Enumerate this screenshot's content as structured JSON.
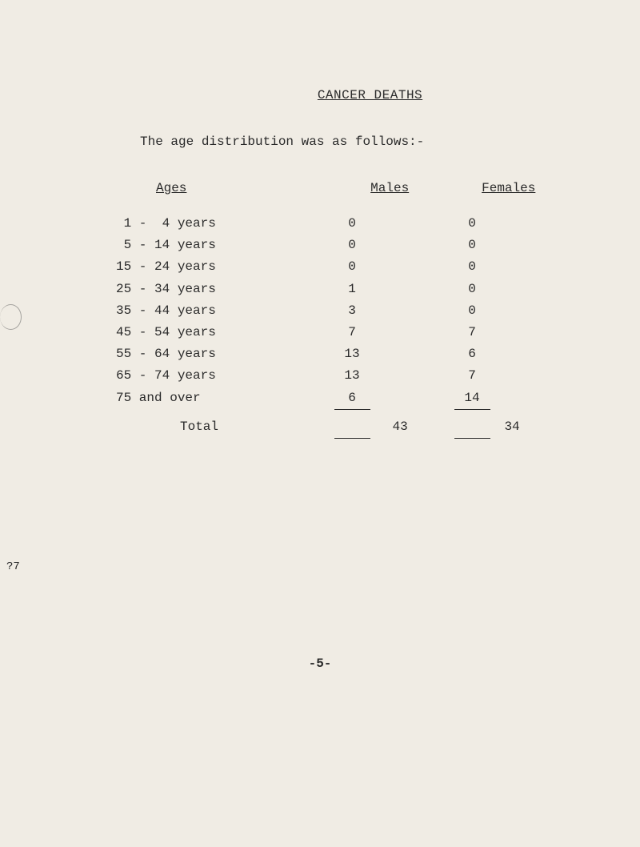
{
  "title": "CANCER DEATHS",
  "intro": "The age distribution was as follows:-",
  "headers": {
    "ages": "Ages",
    "males": "Males",
    "females": "Females"
  },
  "rows": [
    {
      "age": " 1 -  4 years",
      "males": "0",
      "females": "0"
    },
    {
      "age": " 5 - 14 years",
      "males": "0",
      "females": "0"
    },
    {
      "age": "15 - 24 years",
      "males": "0",
      "females": "0"
    },
    {
      "age": "25 - 34 years",
      "males": "1",
      "females": "0"
    },
    {
      "age": "35 - 44 years",
      "males": "3",
      "females": "0"
    },
    {
      "age": "45 - 54 years",
      "males": "7",
      "females": "7"
    },
    {
      "age": "55 - 64 years",
      "males": "13",
      "females": "6"
    },
    {
      "age": "65 - 74 years",
      "males": "13",
      "females": "7"
    },
    {
      "age": "75 and over",
      "males": "6",
      "females": "14"
    }
  ],
  "total": {
    "label": "Total",
    "males": "43",
    "females": "34"
  },
  "page_number": "-5-",
  "margin_mark": "?7"
}
